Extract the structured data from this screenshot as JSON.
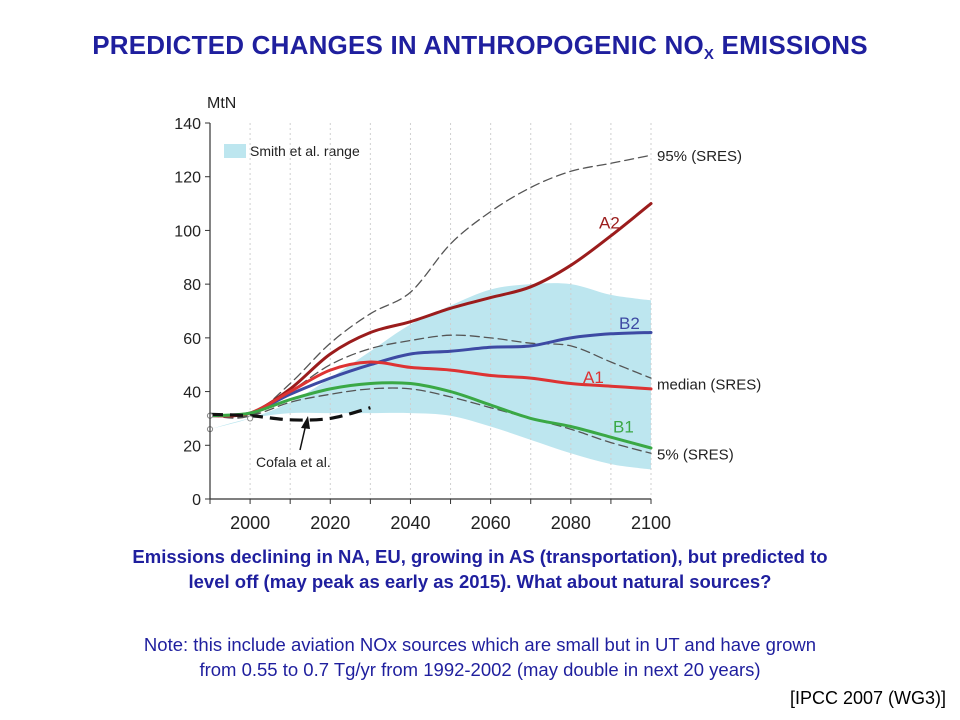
{
  "title": {
    "main": "PREDICTED CHANGES IN ANTHROPOGENIC NO",
    "subscript": "X",
    "suffix": " EMISSIONS"
  },
  "chart_data": {
    "type": "line",
    "ylabel": "MtN",
    "xlim": [
      1990,
      2100
    ],
    "ylim": [
      0,
      140
    ],
    "x_ticks": [
      2000,
      2020,
      2040,
      2060,
      2080,
      2100
    ],
    "y_ticks": [
      0,
      20,
      40,
      60,
      80,
      100,
      120,
      140
    ],
    "legend": {
      "label": "Smith et al. range",
      "placement": "top-left"
    },
    "band": {
      "name": "Smith et al. range",
      "color": "#bde6ef",
      "x": [
        1990,
        2000,
        2010,
        2020,
        2030,
        2040,
        2050,
        2060,
        2070,
        2080,
        2090,
        2100
      ],
      "lower": [
        26,
        30,
        32,
        32,
        32,
        32,
        31,
        27,
        22,
        17,
        13,
        11
      ],
      "upper": [
        26,
        30,
        36,
        45,
        55,
        65,
        72,
        78,
        80,
        80,
        76,
        74
      ]
    },
    "series": [
      {
        "name": "95% (SRES)",
        "style": "dashed",
        "color": "#555555",
        "x": [
          1990,
          2000,
          2010,
          2020,
          2030,
          2040,
          2050,
          2060,
          2070,
          2080,
          2090,
          2100
        ],
        "values": [
          31,
          31,
          43,
          58,
          69,
          77,
          95,
          107,
          116,
          122,
          125,
          128
        ]
      },
      {
        "name": "median (SRES)",
        "style": "dashed",
        "color": "#555555",
        "x": [
          1990,
          2000,
          2010,
          2020,
          2030,
          2040,
          2050,
          2060,
          2070,
          2080,
          2090,
          2100
        ],
        "values": [
          31,
          31,
          40,
          50,
          56,
          59,
          61,
          60,
          58,
          57,
          51,
          45
        ]
      },
      {
        "name": "5% (SRES)",
        "style": "dashed",
        "color": "#555555",
        "x": [
          1990,
          2000,
          2010,
          2020,
          2030,
          2040,
          2050,
          2060,
          2070,
          2080,
          2090,
          2100
        ],
        "values": [
          31,
          31,
          36,
          39,
          41,
          41,
          38,
          34,
          30,
          26,
          21,
          17
        ]
      },
      {
        "name": "A2",
        "style": "solid",
        "color": "#9b1c1c",
        "x": [
          1990,
          2000,
          2010,
          2020,
          2030,
          2040,
          2050,
          2060,
          2070,
          2080,
          2090,
          2100
        ],
        "values": [
          31,
          32,
          41,
          54,
          62,
          66,
          71,
          75,
          79,
          87,
          98,
          110
        ]
      },
      {
        "name": "B2",
        "style": "solid",
        "color": "#3d4aa3",
        "x": [
          1990,
          2000,
          2010,
          2020,
          2030,
          2040,
          2050,
          2060,
          2070,
          2080,
          2090,
          2100
        ],
        "values": [
          31,
          32,
          39,
          45,
          50,
          54,
          55,
          56.5,
          57,
          60,
          61.5,
          62
        ]
      },
      {
        "name": "A1",
        "style": "solid",
        "color": "#dd3333",
        "x": [
          1990,
          2000,
          2010,
          2020,
          2030,
          2040,
          2050,
          2060,
          2070,
          2080,
          2090,
          2100
        ],
        "values": [
          31,
          32,
          40,
          48,
          51,
          49,
          48,
          46,
          45,
          43,
          42,
          41
        ]
      },
      {
        "name": "B1",
        "style": "solid",
        "color": "#3aa845",
        "x": [
          1990,
          2000,
          2010,
          2020,
          2030,
          2040,
          2050,
          2060,
          2070,
          2080,
          2090,
          2100
        ],
        "values": [
          31,
          32,
          37,
          41,
          43,
          43,
          40,
          35,
          30,
          27,
          23,
          19
        ]
      },
      {
        "name": "Cofala et al.",
        "style": "dashed-bold",
        "color": "#111111",
        "x": [
          1990,
          2000,
          2010,
          2020,
          2030
        ],
        "values": [
          31.5,
          31,
          29.5,
          30,
          34
        ]
      }
    ],
    "annotations": [
      "Cofala et al."
    ]
  },
  "captions": {
    "main_line1": "Emissions declining in NA, EU, growing in AS (transportation), but predicted to",
    "main_line2": "level off (may peak as early as 2015).  What about natural sources?",
    "note_line1": "Note: this include aviation NOx sources which are small but in UT and have grown",
    "note_line2": "from 0.55 to 0.7 Tg/yr from 1992-2002 (may double in next 20 years)"
  },
  "source": "[IPCC 2007 (WG3)]"
}
